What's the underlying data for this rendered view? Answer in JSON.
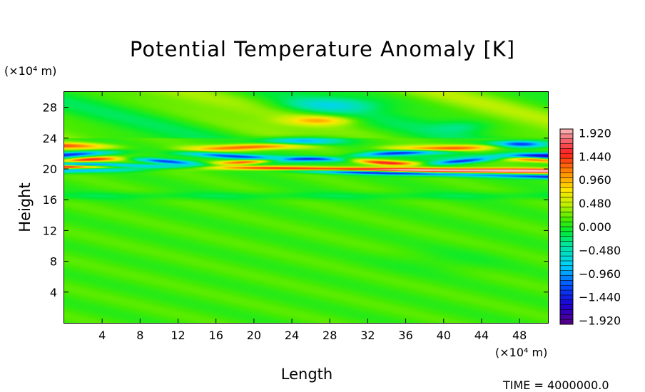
{
  "chart_data": {
    "type": "heatmap",
    "title": "Potential Temperature Anomaly [K]",
    "xlabel": "Length",
    "ylabel": "Height",
    "x_unit": "(×10⁴ m)",
    "y_unit": "(×10⁴ m)",
    "xlim": [
      0,
      51
    ],
    "ylim": [
      0,
      30
    ],
    "x_ticks": [
      4,
      8,
      12,
      16,
      20,
      24,
      28,
      32,
      36,
      40,
      44,
      48
    ],
    "y_ticks": [
      4,
      8,
      12,
      16,
      20,
      24,
      28
    ],
    "colorbar": {
      "min": -2.0,
      "max": 2.0,
      "tick_values": [
        1.92,
        1.44,
        0.96,
        0.48,
        0.0,
        -0.48,
        -0.96,
        -1.44,
        -1.92
      ],
      "tick_labels": [
        "1.920",
        "1.440",
        "0.960",
        "0.480",
        "0.000",
        "−0.480",
        "−0.960",
        "−1.440",
        "−1.920"
      ]
    },
    "time_label": "TIME = 4000000.0"
  }
}
